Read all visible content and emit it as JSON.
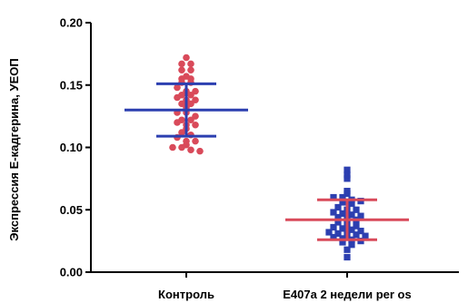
{
  "chart_data": {
    "type": "scatter",
    "ylabel": "Экспрессия Е-кадгерина, УЕОП",
    "ylim": [
      0,
      0.2
    ],
    "yticks": [
      "0.00",
      "0.05",
      "0.10",
      "0.15",
      "0.20"
    ],
    "categories": [
      "Контроль",
      "E407a 2 недели per os"
    ],
    "series": [
      {
        "category": "Контроль",
        "point_color": "#d94a5a",
        "marker": "circle",
        "summary_color": "#2c3fb0",
        "mean": 0.13,
        "sd_upper": 0.151,
        "sd_lower": 0.109,
        "values": [
          0.172,
          0.167,
          0.167,
          0.162,
          0.162,
          0.157,
          0.155,
          0.155,
          0.152,
          0.152,
          0.148,
          0.145,
          0.145,
          0.142,
          0.142,
          0.14,
          0.138,
          0.138,
          0.135,
          0.135,
          0.132,
          0.128,
          0.128,
          0.125,
          0.122,
          0.122,
          0.12,
          0.118,
          0.118,
          0.115,
          0.112,
          0.11,
          0.108,
          0.105,
          0.105,
          0.102,
          0.1,
          0.1,
          0.098,
          0.097
        ]
      },
      {
        "category": "E407a 2 недели per os",
        "point_color": "#2c3fb0",
        "marker": "square",
        "summary_color": "#d94a5a",
        "mean": 0.042,
        "sd_upper": 0.058,
        "sd_lower": 0.026,
        "values": [
          0.082,
          0.078,
          0.075,
          0.065,
          0.063,
          0.06,
          0.06,
          0.058,
          0.057,
          0.056,
          0.055,
          0.052,
          0.05,
          0.05,
          0.048,
          0.047,
          0.046,
          0.045,
          0.044,
          0.043,
          0.042,
          0.04,
          0.038,
          0.037,
          0.036,
          0.035,
          0.034,
          0.033,
          0.032,
          0.031,
          0.03,
          0.03,
          0.029,
          0.028,
          0.027,
          0.026,
          0.025,
          0.024,
          0.022,
          0.018,
          0.012
        ]
      }
    ]
  }
}
